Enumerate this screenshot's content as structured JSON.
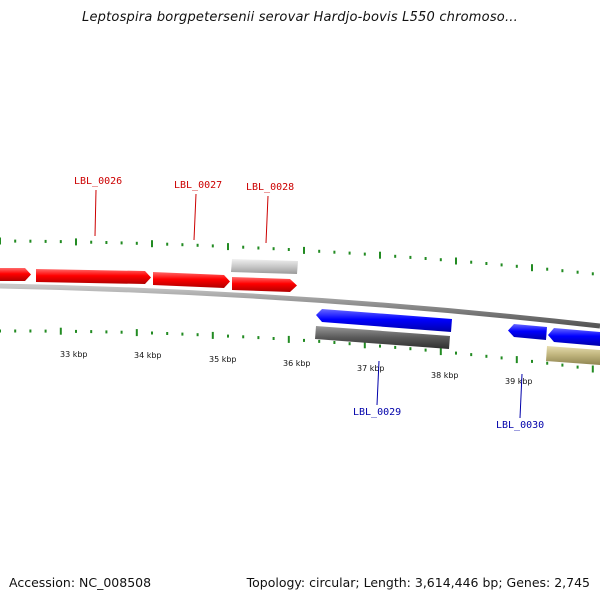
{
  "title": "Leptospira borgpetersenii serovar Hardjo-bovis L550 chromoso...",
  "footer": {
    "accession": "Accession: NC_008508",
    "summary": "Topology: circular; Length: 3,614,446 bp; Genes: 2,745"
  },
  "colors": {
    "forward_gene": "#ff0000",
    "reverse_gene": "#0000ff",
    "forward_cds": "#c8c8c8",
    "reverse_cds": "#5a5a5a",
    "other_feature": "#bdb27a",
    "ticks": "#228b22",
    "backbone": "#8a8a8a",
    "forward_label": "#cc0000",
    "reverse_label": "#0000aa"
  },
  "scale_labels": [
    "33 kbp",
    "34 kbp",
    "35 kbp",
    "36 kbp",
    "37 kbp",
    "38 kbp",
    "39 kbp"
  ],
  "gene_labels": [
    {
      "text": "LBL_0026",
      "strand": "forward"
    },
    {
      "text": "LBL_0027",
      "strand": "forward"
    },
    {
      "text": "LBL_0028",
      "strand": "forward"
    },
    {
      "text": "LBL_0029",
      "strand": "reverse"
    },
    {
      "text": "LBL_0030",
      "strand": "reverse"
    }
  ]
}
